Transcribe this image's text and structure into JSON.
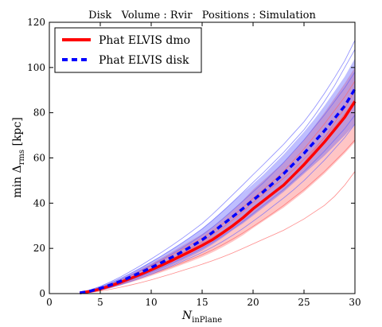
{
  "chart_data": {
    "type": "line",
    "title": "Disk   Volume : Rvir   Positions : Simulation",
    "xlabel": "N",
    "xlabel_sub": "inPlane",
    "ylabel_prefix": "min Δ",
    "ylabel_sub": "rms",
    "ylabel_suffix": " [kpc]",
    "xlim": [
      0,
      30
    ],
    "ylim": [
      0,
      120
    ],
    "xticks": [
      0,
      5,
      10,
      15,
      20,
      25,
      30
    ],
    "yticks": [
      0,
      20,
      40,
      60,
      80,
      100,
      120
    ],
    "grid": false,
    "legend_position": "top-left",
    "x": [
      3,
      4,
      5,
      6,
      7,
      8,
      9,
      10,
      11,
      12,
      13,
      14,
      15,
      16,
      17,
      18,
      19,
      20,
      21,
      22,
      23,
      24,
      25,
      26,
      27,
      28,
      29,
      30
    ],
    "series": [
      {
        "name": "Phat ELVIS dmo",
        "color": "#ff0000",
        "style": "solid",
        "values": [
          0.3,
          1.0,
          2.0,
          3.4,
          5.0,
          6.8,
          8.6,
          10.5,
          12.5,
          14.6,
          16.8,
          19.0,
          21.3,
          23.8,
          26.8,
          30.0,
          33.5,
          37.5,
          41.0,
          44.5,
          48.0,
          52.5,
          57.0,
          62.0,
          67.0,
          72.5,
          78.0,
          85.0
        ],
        "band_low": [
          0.0,
          0.5,
          1.3,
          2.4,
          3.6,
          5.0,
          6.3,
          7.8,
          9.4,
          11.0,
          12.7,
          14.4,
          16.2,
          18.2,
          20.5,
          23.0,
          25.8,
          29.0,
          32.0,
          35.0,
          38.0,
          41.5,
          45.0,
          49.0,
          53.0,
          57.5,
          62.0,
          67.0
        ],
        "band_high": [
          0.6,
          1.6,
          2.8,
          4.5,
          6.4,
          8.6,
          10.9,
          13.3,
          15.8,
          18.3,
          21.0,
          23.6,
          26.3,
          29.4,
          33.0,
          37.0,
          41.3,
          46.0,
          50.0,
          54.0,
          58.0,
          63.0,
          68.0,
          74.0,
          80.0,
          86.5,
          93.0,
          100.0
        ]
      },
      {
        "name": "Phat ELVIS disk",
        "color": "#0000ff",
        "style": "dashed",
        "values": [
          0.3,
          1.1,
          2.3,
          3.8,
          5.5,
          7.4,
          9.4,
          11.5,
          13.7,
          16.0,
          18.4,
          21.0,
          23.8,
          27.0,
          30.5,
          34.0,
          37.6,
          41.3,
          45.0,
          49.0,
          53.0,
          57.5,
          62.0,
          67.0,
          72.0,
          77.5,
          83.0,
          90.5
        ],
        "band_low": [
          0.0,
          0.6,
          1.5,
          2.7,
          4.0,
          5.5,
          7.1,
          8.8,
          10.6,
          12.5,
          14.5,
          16.7,
          19.0,
          21.7,
          24.7,
          28.0,
          31.0,
          34.5,
          38.0,
          41.5,
          45.0,
          49.0,
          53.0,
          57.0,
          61.0,
          65.5,
          70.0,
          75.0
        ],
        "band_high": [
          0.7,
          1.8,
          3.2,
          5.0,
          7.0,
          9.3,
          11.7,
          14.2,
          16.8,
          19.6,
          22.5,
          25.5,
          28.8,
          32.5,
          36.5,
          40.5,
          44.5,
          48.5,
          52.5,
          57.0,
          61.5,
          66.5,
          71.5,
          77.0,
          83.0,
          89.5,
          96.0,
          104.0
        ]
      }
    ],
    "thin_lines": [
      {
        "series": "Phat ELVIS dmo",
        "color": "#ff6666",
        "values": [
          0.2,
          0.8,
          1.7,
          2.8,
          4.1,
          5.5,
          7.0,
          8.5,
          10.1,
          11.8,
          13.5,
          15.3,
          17.2,
          19.3,
          21.6,
          24.1,
          26.8,
          29.7,
          32.7,
          35.8,
          39.0,
          42.5,
          46.0,
          50.0,
          54.0,
          58.5,
          63.0,
          68.0
        ]
      },
      {
        "series": "Phat ELVIS dmo",
        "color": "#ff6666",
        "values": [
          0.4,
          1.3,
          2.6,
          4.2,
          6.0,
          8.0,
          10.1,
          12.3,
          14.6,
          17.0,
          19.5,
          22.0,
          24.6,
          27.5,
          30.8,
          34.3,
          38.1,
          42.2,
          46.0,
          50.0,
          54.0,
          59.0,
          64.0,
          69.5,
          75.0,
          81.0,
          87.0,
          94.0
        ]
      },
      {
        "series": "Phat ELVIS dmo",
        "color": "#ff6666",
        "values": [
          0.3,
          1.0,
          2.1,
          3.5,
          5.1,
          6.9,
          8.9,
          11.0,
          13.2,
          15.5,
          17.9,
          20.4,
          23.0,
          25.9,
          29.1,
          32.6,
          36.3,
          40.3,
          44.0,
          47.5,
          51.0,
          55.0,
          59.5,
          64.0,
          69.0,
          74.0,
          79.5,
          86.0
        ]
      },
      {
        "series": "Phat ELVIS dmo",
        "color": "#ff6666",
        "values": [
          0.1,
          0.5,
          1.1,
          1.9,
          2.8,
          3.8,
          4.9,
          6.1,
          7.4,
          8.7,
          10.1,
          11.5,
          13.0,
          14.5,
          16.2,
          18.0,
          20.0,
          22.0,
          24.0,
          26.0,
          28.0,
          30.5,
          33.0,
          36.0,
          39.0,
          43.0,
          48.0,
          54.0
        ]
      },
      {
        "series": "Phat ELVIS dmo",
        "color": "#ff6666",
        "values": [
          0.3,
          1.1,
          2.2,
          3.6,
          5.2,
          7.0,
          8.9,
          10.9,
          13.0,
          15.2,
          17.5,
          19.9,
          22.3,
          24.8,
          27.6,
          30.6,
          33.8,
          37.2,
          40.8,
          44.6,
          48.5,
          53.0,
          58.0,
          63.5,
          69.0,
          75.5,
          82.0,
          90.0
        ]
      },
      {
        "series": "Phat ELVIS disk",
        "color": "#6666ff",
        "values": [
          0.4,
          1.4,
          2.8,
          4.6,
          6.6,
          8.9,
          11.3,
          13.9,
          16.6,
          19.4,
          22.3,
          25.4,
          28.6,
          32.3,
          36.3,
          40.5,
          44.8,
          49.2,
          53.5,
          58.0,
          62.5,
          67.5,
          72.5,
          78.5,
          85.0,
          92.0,
          100.0,
          108.0
        ]
      },
      {
        "series": "Phat ELVIS disk",
        "color": "#6666ff",
        "values": [
          0.2,
          0.8,
          1.8,
          3.0,
          4.4,
          6.0,
          7.7,
          9.5,
          11.4,
          13.4,
          15.5,
          17.7,
          20.0,
          22.6,
          25.5,
          28.6,
          31.9,
          35.4,
          39.0,
          42.5,
          46.0,
          50.0,
          54.0,
          58.5,
          63.0,
          68.0,
          73.0,
          79.0
        ]
      },
      {
        "series": "Phat ELVIS disk",
        "color": "#6666ff",
        "values": [
          0.3,
          1.2,
          2.5,
          4.1,
          6.0,
          8.1,
          10.3,
          12.6,
          15.0,
          17.5,
          20.1,
          22.9,
          25.9,
          29.3,
          33.0,
          36.9,
          40.9,
          45.0,
          49.0,
          53.5,
          58.0,
          63.0,
          68.0,
          73.5,
          79.0,
          85.0,
          91.0,
          98.0
        ]
      },
      {
        "series": "Phat ELVIS disk",
        "color": "#6666ff",
        "values": [
          0.5,
          1.6,
          3.2,
          5.2,
          7.4,
          9.9,
          12.5,
          15.3,
          18.2,
          21.2,
          24.3,
          27.6,
          31.0,
          35.0,
          39.3,
          43.7,
          48.1,
          52.6,
          57.0,
          61.5,
          66.0,
          71.0,
          76.0,
          82.0,
          88.5,
          95.5,
          103.0,
          112.0
        ]
      },
      {
        "series": "Phat ELVIS disk",
        "color": "#6666ff",
        "values": [
          0.2,
          0.7,
          1.5,
          2.6,
          3.9,
          5.3,
          6.9,
          8.6,
          10.4,
          12.2,
          14.1,
          16.1,
          18.2,
          20.5,
          23.0,
          25.8,
          28.8,
          32.0,
          35.3,
          38.8,
          42.3,
          46.0,
          50.0,
          54.5,
          59.0,
          64.0,
          69.0,
          75.0
        ]
      }
    ]
  }
}
